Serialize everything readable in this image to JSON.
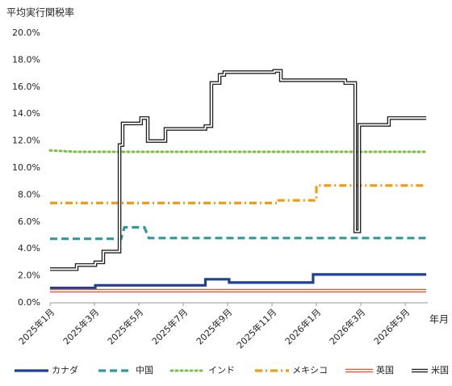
{
  "chart_data": {
    "type": "line",
    "y_label": "平均実行関税率",
    "x_label": "年月",
    "xlim": [
      0,
      17
    ],
    "xticks": [
      {
        "value": 0,
        "label": "2025年1月"
      },
      {
        "value": 2,
        "label": "2025年3月"
      },
      {
        "value": 4,
        "label": "2025年5月"
      },
      {
        "value": 6,
        "label": "2025年7月"
      },
      {
        "value": 8,
        "label": "2025年9月"
      },
      {
        "value": 10,
        "label": "2025年11月"
      },
      {
        "value": 12,
        "label": "2026年1月"
      },
      {
        "value": 14,
        "label": "2026年3月"
      },
      {
        "value": 16,
        "label": "2026年5月"
      }
    ],
    "ylim": [
      0,
      20
    ],
    "yticks": [
      {
        "value": 0,
        "label": "0.0%"
      },
      {
        "value": 2,
        "label": "2.0%"
      },
      {
        "value": 4,
        "label": "4.0%"
      },
      {
        "value": 6,
        "label": "6.0%"
      },
      {
        "value": 8,
        "label": "8.0%"
      },
      {
        "value": 10,
        "label": "10.0%"
      },
      {
        "value": 12,
        "label": "12.0%"
      },
      {
        "value": 14,
        "label": "14.0%"
      },
      {
        "value": 16,
        "label": "16.0%"
      },
      {
        "value": 18,
        "label": "18.0%"
      },
      {
        "value": 20,
        "label": "20.0%"
      }
    ],
    "grid": false,
    "legend": "bottom",
    "series": [
      {
        "name": "カナダ",
        "color": "#1f3f99",
        "style": "solid",
        "x": [
          0,
          2.04,
          2.04,
          7.0,
          7.0,
          8.07,
          8.07,
          11.85,
          11.85,
          16.95
        ],
        "values": [
          1.1,
          1.1,
          1.3,
          1.3,
          1.75,
          1.75,
          1.5,
          1.5,
          2.1,
          2.1
        ]
      },
      {
        "name": "中国",
        "color": "#2e9aa0",
        "style": "dashed",
        "x": [
          0,
          3.2,
          3.35,
          4.25,
          4.45,
          16.95
        ],
        "values": [
          4.75,
          4.75,
          5.6,
          5.6,
          4.8,
          4.8
        ]
      },
      {
        "name": "インド",
        "color": "#7ac143",
        "style": "dotted",
        "x": [
          0,
          1.2,
          16.95
        ],
        "values": [
          11.3,
          11.2,
          11.2
        ]
      },
      {
        "name": "メキシコ",
        "color": "#f39c12",
        "style": "dashdot",
        "x": [
          0,
          10.3,
          10.3,
          12.0,
          12.0,
          16.95
        ],
        "values": [
          7.4,
          7.4,
          7.6,
          7.6,
          8.7,
          8.7
        ]
      },
      {
        "name": "英国",
        "color": "#e05a3a",
        "style": "double",
        "x": [
          0,
          16.95
        ],
        "values": [
          0.9,
          0.9
        ]
      },
      {
        "name": "米国",
        "color": "#222222",
        "style": "double",
        "x": [
          0,
          1.2,
          1.2,
          2.04,
          2.04,
          2.4,
          2.4,
          3.13,
          3.13,
          3.27,
          3.27,
          4.1,
          4.1,
          4.4,
          4.4,
          5.2,
          5.2,
          7.0,
          7.0,
          7.27,
          7.27,
          7.64,
          7.64,
          7.85,
          7.85,
          10.1,
          10.1,
          10.4,
          10.4,
          13.3,
          13.3,
          13.75,
          13.75,
          13.93,
          13.93,
          15.27,
          15.27,
          16.95
        ],
        "values": [
          2.5,
          2.5,
          2.8,
          2.8,
          3.0,
          3.0,
          3.8,
          3.8,
          11.7,
          11.7,
          13.3,
          13.3,
          13.7,
          13.7,
          12.0,
          12.0,
          12.9,
          12.9,
          13.1,
          13.1,
          16.3,
          16.3,
          16.9,
          16.9,
          17.1,
          17.1,
          17.2,
          17.2,
          16.5,
          16.5,
          16.3,
          16.3,
          5.3,
          5.3,
          13.2,
          13.2,
          13.7,
          13.7
        ]
      }
    ]
  }
}
